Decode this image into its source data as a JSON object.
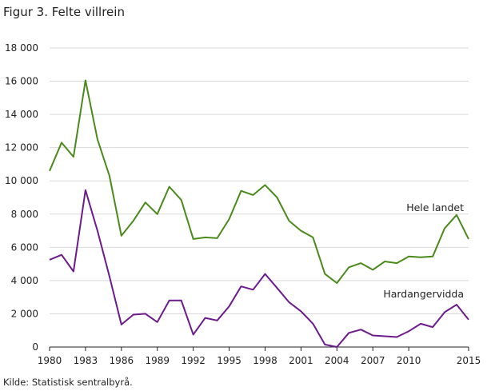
{
  "title": "Figur 3. Felte villrein",
  "source": "Kilde: Statistisk sentralbyrå.",
  "chart_data": {
    "type": "line",
    "x": [
      1980,
      1981,
      1982,
      1983,
      1984,
      1985,
      1986,
      1987,
      1988,
      1989,
      1990,
      1991,
      1992,
      1993,
      1994,
      1995,
      1996,
      1997,
      1998,
      1999,
      2000,
      2001,
      2002,
      2003,
      2004,
      2005,
      2006,
      2007,
      2008,
      2009,
      2010,
      2011,
      2012,
      2013,
      2014,
      2015
    ],
    "x_ticks": [
      1980,
      1983,
      1986,
      1989,
      1992,
      1995,
      1998,
      2001,
      2004,
      2007,
      2010,
      2015
    ],
    "x_tick_labels": [
      "1980",
      "1983",
      "1986",
      "1989",
      "1992",
      "1995",
      "1998",
      "2001",
      "2004",
      "2007",
      "2010",
      "2015"
    ],
    "y_ticks": [
      0,
      2000,
      4000,
      6000,
      8000,
      10000,
      12000,
      14000,
      16000,
      18000
    ],
    "y_tick_labels": [
      "0",
      "2 000",
      "4 000",
      "6 000",
      "8 000",
      "10 000",
      "12 000",
      "14 000",
      "16 000",
      "18 000"
    ],
    "ylim": [
      0,
      18000
    ],
    "xlim": [
      1980,
      2015
    ],
    "grid": "horizontal",
    "series": [
      {
        "name": "Hele landet",
        "color": "#4a8a1a",
        "values": [
          10600,
          12300,
          11450,
          16050,
          12500,
          10300,
          6700,
          7600,
          8700,
          8000,
          9650,
          8850,
          6500,
          6600,
          6550,
          7700,
          9400,
          9150,
          9750,
          9000,
          7600,
          7000,
          6600,
          4400,
          3850,
          4800,
          5050,
          4650,
          5150,
          5050,
          5450,
          5400,
          5450,
          7150,
          7950,
          6500
        ]
      },
      {
        "name": "Hardangervidda",
        "color": "#6c1a8c",
        "values": [
          5250,
          5550,
          4550,
          9450,
          7000,
          4250,
          1350,
          1950,
          2000,
          1500,
          2800,
          2800,
          750,
          1750,
          1600,
          2450,
          3650,
          3450,
          4400,
          3550,
          2700,
          2150,
          1400,
          150,
          0,
          850,
          1050,
          700,
          650,
          600,
          950,
          1400,
          1200,
          2100,
          2550,
          1650
        ]
      }
    ]
  }
}
